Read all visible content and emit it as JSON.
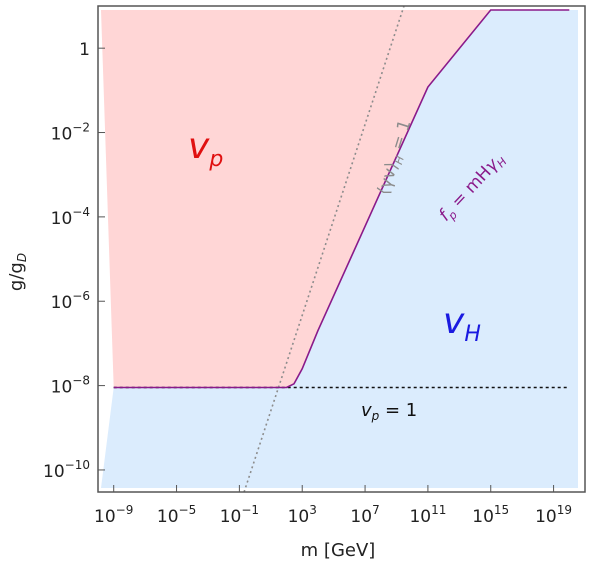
{
  "chart_data": {
    "type": "area",
    "x_scale": "log",
    "y_scale": "log",
    "xlabel": "m [GeV]",
    "ylabel": "g/g_D",
    "xlim": [
      1e-10,
      1e+21
    ],
    "ylim": [
      3e-11,
      10
    ],
    "x_ticks": [
      {
        "value": 1e-09,
        "mant": "10",
        "exp": "−9"
      },
      {
        "value": 1e-05,
        "mant": "10",
        "exp": "−5"
      },
      {
        "value": 0.1,
        "mant": "10",
        "exp": "−1"
      },
      {
        "value": 1000.0,
        "mant": "10",
        "exp": "3"
      },
      {
        "value": 10000000.0,
        "mant": "10",
        "exp": "7"
      },
      {
        "value": 100000000000.0,
        "mant": "10",
        "exp": "11"
      },
      {
        "value": 1000000000000000.0,
        "mant": "10",
        "exp": "15"
      },
      {
        "value": 1e+19,
        "mant": "10",
        "exp": "19"
      }
    ],
    "y_ticks": [
      {
        "value": 1,
        "mant": "1",
        "exp": ""
      },
      {
        "value": 0.01,
        "mant": "10",
        "exp": "−2"
      },
      {
        "value": 0.0001,
        "mant": "10",
        "exp": "−4"
      },
      {
        "value": 1e-06,
        "mant": "10",
        "exp": "−6"
      },
      {
        "value": 1e-08,
        "mant": "10",
        "exp": "−8"
      },
      {
        "value": 1e-10,
        "mant": "10",
        "exp": "−10"
      }
    ],
    "regions": [
      {
        "label": "v_p",
        "color": "#ffd6d6",
        "text_color": "#e01010"
      },
      {
        "label": "v_H",
        "color": "#dbecfd",
        "text_color": "#1a1ae0"
      }
    ],
    "boundary_curve": {
      "label": "f_p = mHγ_H",
      "color": "#8a1a8a",
      "points": [
        {
          "x": 1e-09,
          "y": 9e-09
        },
        {
          "x": 100.0,
          "y": 9e-09
        },
        {
          "x": 300.0,
          "y": 1.1e-08
        },
        {
          "x": 1000.0,
          "y": 2.5e-08
        },
        {
          "x": 10000.0,
          "y": 2e-07
        },
        {
          "x": 10000000.0,
          "y": 6e-05
        },
        {
          "x": 100000000000.0,
          "y": 0.12
        },
        {
          "x": 1000000000000000.0,
          "y": 250
        },
        {
          "x": 1e+20,
          "y": 4000000.0
        }
      ]
    },
    "reference_lines": [
      {
        "label": "⟨γv⟩_H = 1",
        "style": "dotted",
        "color": "#8c8c8c",
        "points": [
          {
            "x": 0.2,
            "y": 3e-11
          },
          {
            "x": 3000000000.0,
            "y": 10
          }
        ]
      },
      {
        "label": "v_p = 1",
        "style": "dashed",
        "color": "#111111",
        "points": [
          {
            "x": 1e-09,
            "y": 9e-09
          },
          {
            "x": 1e+20,
            "y": 9e-09
          }
        ]
      }
    ]
  }
}
